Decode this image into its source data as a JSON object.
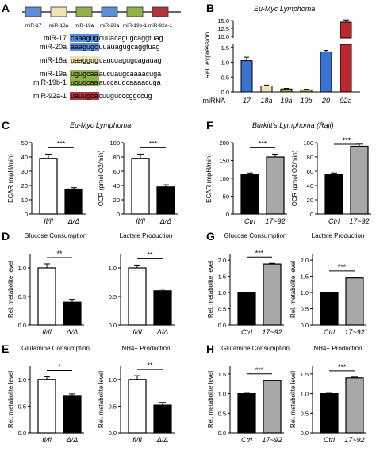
{
  "panels": {
    "A": {
      "letter": "A",
      "cluster": [
        "miR-17",
        "miR-18a",
        "miR-19a",
        "miR-20a",
        "miR-19b-1",
        "miR-92a-1"
      ],
      "cluster_colors": [
        "#5b8ed6",
        "#ece3b6",
        "#8fb04a",
        "#5b8ed6",
        "#8fb04a",
        "#b0343c"
      ],
      "seqs": [
        {
          "labels": [
            "miR-17",
            "miR-20a"
          ],
          "seed": [
            "caaagug",
            "aaagugc"
          ],
          "rest": [
            "cuuacagugcaggtuag",
            "uuauagugcaggtuag"
          ],
          "color": "#5b8ed6"
        },
        {
          "labels": [
            "miR-18a"
          ],
          "seed": [
            "uaaggug"
          ],
          "rest": [
            "caucuagugcagauag"
          ],
          "color": "#ece3b6"
        },
        {
          "labels": [
            "miR-19a",
            "miR-19b-1"
          ],
          "seed": [
            "ugugcaa",
            "ugugcaa"
          ],
          "rest": [
            "aucuaugcaaaacuga",
            "auccaugcaaaacuga"
          ],
          "color": "#8fb04a"
        },
        {
          "labels": [
            "miR-92a-1"
          ],
          "seed": [
            "uauugca"
          ],
          "rest": [
            "cuugucccggccug"
          ],
          "color": "#b0343c"
        }
      ]
    },
    "B": {
      "letter": "B",
      "title": "Eμ-Myc Lymphoma"
    },
    "C": {
      "letter": "C",
      "title": "Eμ-Myc Lymphoma"
    },
    "D": {
      "letter": "D"
    },
    "E": {
      "letter": "E"
    },
    "F": {
      "letter": "F",
      "title": "Burkitt's Lymphoma (Raji)"
    },
    "G": {
      "letter": "G"
    },
    "H": {
      "letter": "H"
    }
  },
  "chart_data": [
    {
      "id": "B",
      "type": "bar",
      "ylabel": "Rel. expression",
      "xlabel": "miRNA",
      "categories": [
        "17",
        "18a",
        "19a",
        "19b",
        "20",
        "92a"
      ],
      "values": [
        1.05,
        0.2,
        0.1,
        0.07,
        1.35,
        14.5
      ],
      "errors": [
        0.12,
        0.03,
        0.02,
        0.02,
        0.05,
        0.7
      ],
      "colors": [
        "#3a74d0",
        "#ece3b6",
        "#8fb04a",
        "#8fb04a",
        "#3a74d0",
        "#c0262d"
      ],
      "axis_break": {
        "lower": [
          0,
          1.6
        ],
        "upper": [
          9.5,
          15
        ]
      },
      "yticks_lower": [
        "0.0",
        "0.5",
        "1.0",
        "1.5"
      ],
      "yticks_upper": [
        "10.0",
        "12.5",
        "15.0"
      ]
    },
    {
      "id": "C1",
      "type": "bar",
      "ylabel": "ECAR (mpH/min)",
      "ylim": [
        0,
        50
      ],
      "yticks": [
        0,
        10,
        20,
        30,
        40,
        50
      ],
      "categories": [
        "fl/fl",
        "Δ/Δ"
      ],
      "values": [
        39,
        17.5
      ],
      "errors": [
        3,
        1
      ],
      "colors": [
        "#ffffff",
        "#000000"
      ],
      "sig": "***"
    },
    {
      "id": "C2",
      "type": "bar",
      "ylabel": "OCR (pmol O2/min)",
      "ylim": [
        0,
        100
      ],
      "yticks": [
        0,
        20,
        40,
        60,
        80,
        100
      ],
      "categories": [
        "fl/fl",
        "Δ/Δ"
      ],
      "values": [
        78,
        38
      ],
      "errors": [
        6,
        3
      ],
      "colors": [
        "#ffffff",
        "#000000"
      ],
      "sig": "***"
    },
    {
      "id": "F1",
      "type": "bar",
      "ylabel": "ECAR (mpH/min)",
      "ylim": [
        0,
        200
      ],
      "yticks": [
        0,
        50,
        100,
        150,
        200
      ],
      "categories": [
        "Ctrl",
        "17~92"
      ],
      "values": [
        110,
        160
      ],
      "errors": [
        5,
        8
      ],
      "colors": [
        "#000000",
        "#a8a8a8"
      ],
      "sig": "***"
    },
    {
      "id": "F2",
      "type": "bar",
      "ylabel": "OCR (pmol O2/min)",
      "ylim": [
        0,
        100
      ],
      "yticks": [
        0,
        20,
        40,
        60,
        80,
        100
      ],
      "categories": [
        "Ctrl",
        "17~92"
      ],
      "values": [
        56,
        95
      ],
      "errors": [
        1.5,
        3
      ],
      "colors": [
        "#000000",
        "#a8a8a8"
      ],
      "sig": "***"
    },
    {
      "id": "D1",
      "type": "bar",
      "title": "Glucose Consumption",
      "ylabel": "Rel. metabolite level",
      "ylim": [
        0,
        1.25
      ],
      "yticks": [
        "0.0",
        "0.5",
        "1.0"
      ],
      "categories": [
        "fl/fl",
        "Δ/Δ"
      ],
      "values": [
        1.0,
        0.4
      ],
      "errors": [
        0.07,
        0.05
      ],
      "colors": [
        "#ffffff",
        "#000000"
      ],
      "sig": "**"
    },
    {
      "id": "D2",
      "type": "bar",
      "title": "Lactate Production",
      "ylabel": "",
      "ylim": [
        0,
        1.25
      ],
      "yticks": [
        "0.0",
        "0.5",
        "1.0"
      ],
      "categories": [
        "fl/fl",
        "Δ/Δ"
      ],
      "values": [
        1.0,
        0.6
      ],
      "errors": [
        0.05,
        0.03
      ],
      "colors": [
        "#ffffff",
        "#000000"
      ],
      "sig": "**"
    },
    {
      "id": "G1",
      "type": "bar",
      "title": "Glucose Consumption",
      "ylabel": "Rel. metabolite level",
      "ylim": [
        0,
        2.2
      ],
      "yticks": [
        "0.0",
        "0.5",
        "1.0",
        "1.5",
        "2.0"
      ],
      "categories": [
        "Ctrl",
        "17~92"
      ],
      "values": [
        1.0,
        1.88
      ],
      "errors": [
        0.01,
        0.02
      ],
      "colors": [
        "#000000",
        "#a8a8a8"
      ],
      "sig": "***"
    },
    {
      "id": "G2",
      "type": "bar",
      "title": "Lactate Production",
      "ylabel": "Rel. metabolite level",
      "ylim": [
        0,
        2.2
      ],
      "yticks": [
        "0.0",
        "0.5",
        "1.0",
        "1.5",
        "2.0"
      ],
      "categories": [
        "Ctrl",
        "17~92"
      ],
      "values": [
        1.0,
        1.45
      ],
      "errors": [
        0.01,
        0.02
      ],
      "colors": [
        "#000000",
        "#a8a8a8"
      ],
      "sig": "***"
    },
    {
      "id": "E1",
      "type": "bar",
      "title": "Glutamine Consumption",
      "ylabel": "Rel. metabolite level",
      "ylim": [
        0,
        1.25
      ],
      "yticks": [
        "0.0",
        "0.5",
        "1.0"
      ],
      "categories": [
        "fl/fl",
        "Δ/Δ"
      ],
      "values": [
        1.0,
        0.7
      ],
      "errors": [
        0.05,
        0.03
      ],
      "colors": [
        "#ffffff",
        "#000000"
      ],
      "sig": "*"
    },
    {
      "id": "E2",
      "type": "bar",
      "title": "NH4+ Production",
      "ylabel": "Rel. metabolite level",
      "ylim": [
        0,
        1.25
      ],
      "yticks": [
        "0.0",
        "0.5",
        "1.0"
      ],
      "categories": [
        "fl/fl",
        "Δ/Δ"
      ],
      "values": [
        1.0,
        0.52
      ],
      "errors": [
        0.07,
        0.05
      ],
      "colors": [
        "#ffffff",
        "#000000"
      ],
      "sig": "**"
    },
    {
      "id": "H1",
      "type": "bar",
      "title": "Glutamine Consumption",
      "ylabel": "Rel. metabolite level",
      "ylim": [
        0,
        1.7
      ],
      "yticks": [
        "0.0",
        "0.5",
        "1.0",
        "1.5"
      ],
      "categories": [
        "Ctrl",
        "17~92"
      ],
      "values": [
        1.0,
        1.33
      ],
      "errors": [
        0.01,
        0.01
      ],
      "colors": [
        "#000000",
        "#a8a8a8"
      ],
      "sig": "***"
    },
    {
      "id": "H2",
      "type": "bar",
      "title": "NH4+ Production",
      "ylabel": "Rel. metabolite level",
      "ylim": [
        0,
        1.7
      ],
      "yticks": [
        "0.0",
        "0.5",
        "1.0",
        "1.5"
      ],
      "categories": [
        "Ctrl",
        "17~92"
      ],
      "values": [
        1.0,
        1.4
      ],
      "errors": [
        0.01,
        0.02
      ],
      "colors": [
        "#000000",
        "#a8a8a8"
      ],
      "sig": "***"
    }
  ]
}
